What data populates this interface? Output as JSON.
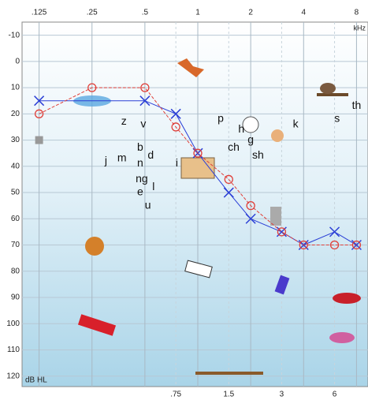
{
  "chart_data": {
    "type": "audiogram",
    "x_unit_label": "kHz",
    "y_unit_label": "dB HL",
    "xscale": "log",
    "xlim": [
      0.1,
      9.3
    ],
    "ylim": [
      -15,
      124
    ],
    "y_inverted": true,
    "grid": true,
    "xticks": [
      {
        "value": 0.125,
        "label": ".125"
      },
      {
        "value": 0.25,
        "label": ".25"
      },
      {
        "value": 0.5,
        "label": ".5"
      },
      1,
      2,
      4,
      8
    ],
    "xticks_minor": [
      {
        "value": 0.75,
        "label": ".75"
      },
      1.5,
      3,
      6
    ],
    "yticks": [
      -10,
      0,
      10,
      20,
      30,
      40,
      50,
      60,
      70,
      80,
      90,
      100,
      110,
      120
    ],
    "series": [
      {
        "name": "X",
        "marker": "x",
        "color": "#2b3fd6",
        "x": [
          0.125,
          0.5,
          0.75,
          1,
          1.5,
          2,
          3,
          4,
          6,
          8
        ],
        "values": [
          15,
          15,
          20,
          35,
          50,
          60,
          65,
          70,
          65,
          70
        ]
      },
      {
        "name": "O",
        "marker": "o",
        "color": "#e0403a",
        "x": [
          0.125,
          0.25,
          0.5,
          0.75,
          1,
          1.5,
          2,
          3,
          4,
          6,
          8
        ],
        "values": [
          20,
          10,
          10,
          25,
          35,
          45,
          55,
          65,
          70,
          70,
          70
        ]
      },
      {
        "name": "square",
        "marker": "square",
        "color": "#999999",
        "x": [
          0.125
        ],
        "values": [
          30
        ]
      }
    ],
    "sounds": [
      {
        "text": "z",
        "x": 0.38,
        "y": 23
      },
      {
        "text": "v",
        "x": 0.49,
        "y": 24
      },
      {
        "text": "p",
        "x": 1.35,
        "y": 22
      },
      {
        "text": "h",
        "x": 1.77,
        "y": 26
      },
      {
        "text": "g",
        "x": 2.0,
        "y": 30
      },
      {
        "text": "k",
        "x": 3.6,
        "y": 24
      },
      {
        "text": "ch",
        "x": 1.6,
        "y": 33
      },
      {
        "text": "sh",
        "x": 2.2,
        "y": 36
      },
      {
        "text": "b",
        "x": 0.47,
        "y": 33
      },
      {
        "text": "d",
        "x": 0.54,
        "y": 36
      },
      {
        "text": "j",
        "x": 0.3,
        "y": 38
      },
      {
        "text": "m",
        "x": 0.37,
        "y": 37
      },
      {
        "text": "i",
        "x": 0.76,
        "y": 39
      },
      {
        "text": "n",
        "x": 0.47,
        "y": 39
      },
      {
        "text": "ng",
        "x": 0.48,
        "y": 45
      },
      {
        "text": "e",
        "x": 0.47,
        "y": 50
      },
      {
        "text": "l",
        "x": 0.56,
        "y": 48
      },
      {
        "text": "u",
        "x": 0.52,
        "y": 55
      },
      {
        "text": "th",
        "x": 8,
        "y": 17
      },
      {
        "text": "s",
        "x": 6.2,
        "y": 22
      }
    ]
  }
}
